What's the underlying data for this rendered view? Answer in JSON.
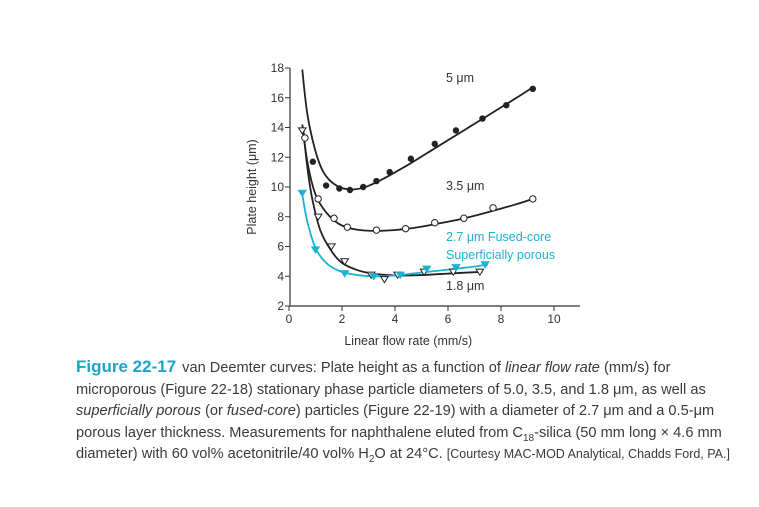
{
  "chart_data": {
    "type": "scatter",
    "title": "",
    "xlabel": "Linear flow rate (mm/s)",
    "ylabel": "Plate height (μm)",
    "xlim": [
      0,
      10.5
    ],
    "ylim": [
      2,
      18
    ],
    "xticks": [
      0,
      2,
      4,
      6,
      8,
      10
    ],
    "yticks": [
      2,
      4,
      6,
      8,
      10,
      12,
      14,
      16,
      18
    ],
    "series": [
      {
        "name": "5 μm",
        "marker": "filled-circle",
        "color": "#222222",
        "points": [
          [
            0.9,
            11.7
          ],
          [
            1.4,
            10.1
          ],
          [
            1.9,
            9.9
          ],
          [
            2.3,
            9.8
          ],
          [
            2.8,
            10.0
          ],
          [
            3.3,
            10.4
          ],
          [
            3.8,
            11.0
          ],
          [
            4.6,
            11.9
          ],
          [
            5.5,
            12.9
          ],
          [
            6.3,
            13.8
          ],
          [
            7.3,
            14.6
          ],
          [
            8.2,
            15.5
          ],
          [
            9.2,
            16.6
          ]
        ],
        "curve": [
          [
            0.5,
            17.9
          ],
          [
            0.7,
            14.8
          ],
          [
            1.0,
            12.4
          ],
          [
            1.3,
            11.0
          ],
          [
            1.7,
            10.2
          ],
          [
            2.2,
            9.85
          ],
          [
            2.8,
            9.95
          ],
          [
            3.5,
            10.5
          ],
          [
            4.5,
            11.5
          ],
          [
            5.5,
            12.6
          ],
          [
            6.5,
            13.7
          ],
          [
            7.5,
            14.8
          ],
          [
            8.5,
            15.9
          ],
          [
            9.2,
            16.7
          ]
        ]
      },
      {
        "name": "3.5 μm",
        "marker": "open-circle",
        "color": "#222222",
        "points": [
          [
            0.6,
            13.3
          ],
          [
            1.1,
            9.2
          ],
          [
            1.7,
            7.9
          ],
          [
            2.2,
            7.3
          ],
          [
            3.3,
            7.1
          ],
          [
            4.4,
            7.2
          ],
          [
            5.5,
            7.6
          ],
          [
            6.6,
            7.9
          ],
          [
            7.7,
            8.6
          ],
          [
            9.2,
            9.2
          ]
        ],
        "curve": [
          [
            0.5,
            14.2
          ],
          [
            0.7,
            11.6
          ],
          [
            1.0,
            9.5
          ],
          [
            1.4,
            8.3
          ],
          [
            1.9,
            7.5
          ],
          [
            2.5,
            7.15
          ],
          [
            3.3,
            7.05
          ],
          [
            4.5,
            7.2
          ],
          [
            5.5,
            7.5
          ],
          [
            6.5,
            7.85
          ],
          [
            7.5,
            8.3
          ],
          [
            8.5,
            8.8
          ],
          [
            9.2,
            9.2
          ]
        ]
      },
      {
        "name": "1.8 μm",
        "marker": "open-triangle",
        "color": "#222222",
        "points": [
          [
            0.5,
            13.8
          ],
          [
            1.1,
            8.0
          ],
          [
            1.6,
            6.0
          ],
          [
            2.1,
            5.0
          ],
          [
            3.1,
            4.1
          ],
          [
            3.6,
            3.8
          ],
          [
            4.1,
            4.1
          ],
          [
            5.1,
            4.3
          ],
          [
            6.2,
            4.3
          ],
          [
            7.2,
            4.3
          ]
        ],
        "curve": [
          [
            0.55,
            13.7
          ],
          [
            0.7,
            11.2
          ],
          [
            0.9,
            9.0
          ],
          [
            1.2,
            7.0
          ],
          [
            1.6,
            5.7
          ],
          [
            2.0,
            4.9
          ],
          [
            2.6,
            4.4
          ],
          [
            3.3,
            4.15
          ],
          [
            4.2,
            4.05
          ],
          [
            5.2,
            4.1
          ],
          [
            6.2,
            4.2
          ],
          [
            7.3,
            4.3
          ]
        ]
      },
      {
        "name": "2.7 μm Fused-core Superficially porous",
        "marker": "filled-triangle",
        "color": "#18b4d2",
        "points": [
          [
            0.5,
            9.6
          ],
          [
            1.0,
            5.8
          ],
          [
            2.1,
            4.2
          ],
          [
            3.2,
            4.0
          ],
          [
            4.2,
            4.1
          ],
          [
            5.2,
            4.5
          ],
          [
            6.3,
            4.6
          ],
          [
            7.4,
            4.8
          ]
        ],
        "curve": [
          [
            0.5,
            9.5
          ],
          [
            0.7,
            7.6
          ],
          [
            1.0,
            5.9
          ],
          [
            1.4,
            4.9
          ],
          [
            1.9,
            4.35
          ],
          [
            2.5,
            4.1
          ],
          [
            3.2,
            4.0
          ],
          [
            4.0,
            4.05
          ],
          [
            5.0,
            4.25
          ],
          [
            6.0,
            4.45
          ],
          [
            7.0,
            4.65
          ],
          [
            7.5,
            4.8
          ]
        ]
      }
    ],
    "annotations": {
      "label_5um": "5 μm",
      "label_35um": "3.5 μm",
      "label_27um_line1": "2.7 μm Fused-core",
      "label_27um_line2": "Superficially porous",
      "label_18um": "1.8 μm"
    }
  },
  "caption": {
    "figure_label": "Figure 22-17",
    "p1": "van Deemter curves: Plate height as a function of ",
    "p2": "linear flow rate",
    "p3": " (mm/s) for microporous (Figure 22-18) stationary phase particle diameters of 5.0, 3.5, and 1.8 μm, as well as ",
    "p4": "superficially porous",
    "p5": " (or ",
    "p6": "fused-core",
    "p7": ") particles (Figure 22-19) with a diameter of 2.7 μm and a 0.5-μm porous layer thickness. Measurements for naphthalene eluted from C",
    "p8": "18",
    "p9": "-silica (50 mm long × 4.6 mm diameter) with 60 vol% acetonitrile/40 vol% H",
    "p10": "2",
    "p11": "O at 24°C. ",
    "p12": "[Courtesy MAC-MOD Analytical, Chadds Ford, PA.]"
  }
}
